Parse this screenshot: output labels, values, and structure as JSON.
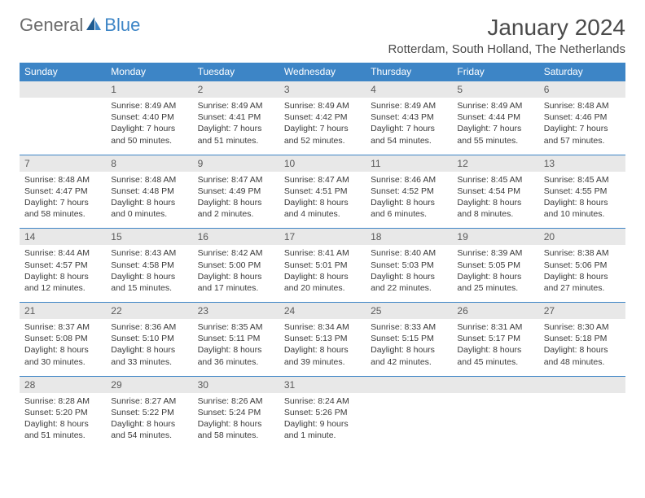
{
  "logo": {
    "general": "General",
    "blue": "Blue"
  },
  "title": "January 2024",
  "location": "Rotterdam, South Holland, The Netherlands",
  "colors": {
    "header_bg": "#3d85c6",
    "header_text": "#ffffff",
    "daynum_bg": "#e8e8e8",
    "daynum_text": "#5a5a5a",
    "body_text": "#3a3a3a",
    "title_text": "#4a4a4a",
    "logo_gray": "#6b6b6b",
    "logo_blue": "#3d85c6"
  },
  "day_headers": [
    "Sunday",
    "Monday",
    "Tuesday",
    "Wednesday",
    "Thursday",
    "Friday",
    "Saturday"
  ],
  "weeks": [
    [
      {
        "num": "",
        "sunrise": "",
        "sunset": "",
        "daylight": ""
      },
      {
        "num": "1",
        "sunrise": "Sunrise: 8:49 AM",
        "sunset": "Sunset: 4:40 PM",
        "daylight": "Daylight: 7 hours and 50 minutes."
      },
      {
        "num": "2",
        "sunrise": "Sunrise: 8:49 AM",
        "sunset": "Sunset: 4:41 PM",
        "daylight": "Daylight: 7 hours and 51 minutes."
      },
      {
        "num": "3",
        "sunrise": "Sunrise: 8:49 AM",
        "sunset": "Sunset: 4:42 PM",
        "daylight": "Daylight: 7 hours and 52 minutes."
      },
      {
        "num": "4",
        "sunrise": "Sunrise: 8:49 AM",
        "sunset": "Sunset: 4:43 PM",
        "daylight": "Daylight: 7 hours and 54 minutes."
      },
      {
        "num": "5",
        "sunrise": "Sunrise: 8:49 AM",
        "sunset": "Sunset: 4:44 PM",
        "daylight": "Daylight: 7 hours and 55 minutes."
      },
      {
        "num": "6",
        "sunrise": "Sunrise: 8:48 AM",
        "sunset": "Sunset: 4:46 PM",
        "daylight": "Daylight: 7 hours and 57 minutes."
      }
    ],
    [
      {
        "num": "7",
        "sunrise": "Sunrise: 8:48 AM",
        "sunset": "Sunset: 4:47 PM",
        "daylight": "Daylight: 7 hours and 58 minutes."
      },
      {
        "num": "8",
        "sunrise": "Sunrise: 8:48 AM",
        "sunset": "Sunset: 4:48 PM",
        "daylight": "Daylight: 8 hours and 0 minutes."
      },
      {
        "num": "9",
        "sunrise": "Sunrise: 8:47 AM",
        "sunset": "Sunset: 4:49 PM",
        "daylight": "Daylight: 8 hours and 2 minutes."
      },
      {
        "num": "10",
        "sunrise": "Sunrise: 8:47 AM",
        "sunset": "Sunset: 4:51 PM",
        "daylight": "Daylight: 8 hours and 4 minutes."
      },
      {
        "num": "11",
        "sunrise": "Sunrise: 8:46 AM",
        "sunset": "Sunset: 4:52 PM",
        "daylight": "Daylight: 8 hours and 6 minutes."
      },
      {
        "num": "12",
        "sunrise": "Sunrise: 8:45 AM",
        "sunset": "Sunset: 4:54 PM",
        "daylight": "Daylight: 8 hours and 8 minutes."
      },
      {
        "num": "13",
        "sunrise": "Sunrise: 8:45 AM",
        "sunset": "Sunset: 4:55 PM",
        "daylight": "Daylight: 8 hours and 10 minutes."
      }
    ],
    [
      {
        "num": "14",
        "sunrise": "Sunrise: 8:44 AM",
        "sunset": "Sunset: 4:57 PM",
        "daylight": "Daylight: 8 hours and 12 minutes."
      },
      {
        "num": "15",
        "sunrise": "Sunrise: 8:43 AM",
        "sunset": "Sunset: 4:58 PM",
        "daylight": "Daylight: 8 hours and 15 minutes."
      },
      {
        "num": "16",
        "sunrise": "Sunrise: 8:42 AM",
        "sunset": "Sunset: 5:00 PM",
        "daylight": "Daylight: 8 hours and 17 minutes."
      },
      {
        "num": "17",
        "sunrise": "Sunrise: 8:41 AM",
        "sunset": "Sunset: 5:01 PM",
        "daylight": "Daylight: 8 hours and 20 minutes."
      },
      {
        "num": "18",
        "sunrise": "Sunrise: 8:40 AM",
        "sunset": "Sunset: 5:03 PM",
        "daylight": "Daylight: 8 hours and 22 minutes."
      },
      {
        "num": "19",
        "sunrise": "Sunrise: 8:39 AM",
        "sunset": "Sunset: 5:05 PM",
        "daylight": "Daylight: 8 hours and 25 minutes."
      },
      {
        "num": "20",
        "sunrise": "Sunrise: 8:38 AM",
        "sunset": "Sunset: 5:06 PM",
        "daylight": "Daylight: 8 hours and 27 minutes."
      }
    ],
    [
      {
        "num": "21",
        "sunrise": "Sunrise: 8:37 AM",
        "sunset": "Sunset: 5:08 PM",
        "daylight": "Daylight: 8 hours and 30 minutes."
      },
      {
        "num": "22",
        "sunrise": "Sunrise: 8:36 AM",
        "sunset": "Sunset: 5:10 PM",
        "daylight": "Daylight: 8 hours and 33 minutes."
      },
      {
        "num": "23",
        "sunrise": "Sunrise: 8:35 AM",
        "sunset": "Sunset: 5:11 PM",
        "daylight": "Daylight: 8 hours and 36 minutes."
      },
      {
        "num": "24",
        "sunrise": "Sunrise: 8:34 AM",
        "sunset": "Sunset: 5:13 PM",
        "daylight": "Daylight: 8 hours and 39 minutes."
      },
      {
        "num": "25",
        "sunrise": "Sunrise: 8:33 AM",
        "sunset": "Sunset: 5:15 PM",
        "daylight": "Daylight: 8 hours and 42 minutes."
      },
      {
        "num": "26",
        "sunrise": "Sunrise: 8:31 AM",
        "sunset": "Sunset: 5:17 PM",
        "daylight": "Daylight: 8 hours and 45 minutes."
      },
      {
        "num": "27",
        "sunrise": "Sunrise: 8:30 AM",
        "sunset": "Sunset: 5:18 PM",
        "daylight": "Daylight: 8 hours and 48 minutes."
      }
    ],
    [
      {
        "num": "28",
        "sunrise": "Sunrise: 8:28 AM",
        "sunset": "Sunset: 5:20 PM",
        "daylight": "Daylight: 8 hours and 51 minutes."
      },
      {
        "num": "29",
        "sunrise": "Sunrise: 8:27 AM",
        "sunset": "Sunset: 5:22 PM",
        "daylight": "Daylight: 8 hours and 54 minutes."
      },
      {
        "num": "30",
        "sunrise": "Sunrise: 8:26 AM",
        "sunset": "Sunset: 5:24 PM",
        "daylight": "Daylight: 8 hours and 58 minutes."
      },
      {
        "num": "31",
        "sunrise": "Sunrise: 8:24 AM",
        "sunset": "Sunset: 5:26 PM",
        "daylight": "Daylight: 9 hours and 1 minute."
      },
      {
        "num": "",
        "sunrise": "",
        "sunset": "",
        "daylight": ""
      },
      {
        "num": "",
        "sunrise": "",
        "sunset": "",
        "daylight": ""
      },
      {
        "num": "",
        "sunrise": "",
        "sunset": "",
        "daylight": ""
      }
    ]
  ]
}
